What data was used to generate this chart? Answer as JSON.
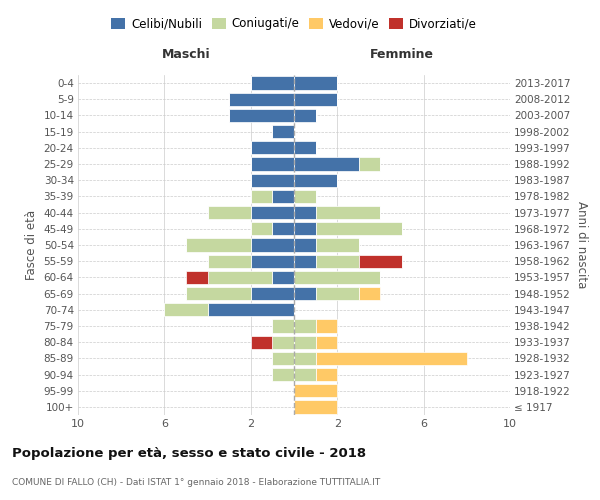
{
  "age_groups": [
    "100+",
    "95-99",
    "90-94",
    "85-89",
    "80-84",
    "75-79",
    "70-74",
    "65-69",
    "60-64",
    "55-59",
    "50-54",
    "45-49",
    "40-44",
    "35-39",
    "30-34",
    "25-29",
    "20-24",
    "15-19",
    "10-14",
    "5-9",
    "0-4"
  ],
  "birth_years": [
    "≤ 1917",
    "1918-1922",
    "1923-1927",
    "1928-1932",
    "1933-1937",
    "1938-1942",
    "1943-1947",
    "1948-1952",
    "1953-1957",
    "1958-1962",
    "1963-1967",
    "1968-1972",
    "1973-1977",
    "1978-1982",
    "1983-1987",
    "1988-1992",
    "1993-1997",
    "1998-2002",
    "2003-2007",
    "2008-2012",
    "2013-2017"
  ],
  "males": {
    "celibi": [
      0,
      0,
      0,
      0,
      0,
      0,
      4,
      2,
      1,
      2,
      2,
      1,
      2,
      1,
      2,
      2,
      2,
      1,
      3,
      3,
      2
    ],
    "coniugati": [
      0,
      0,
      1,
      1,
      1,
      1,
      2,
      3,
      3,
      2,
      3,
      1,
      2,
      1,
      0,
      0,
      0,
      0,
      0,
      0,
      0
    ],
    "vedovi": [
      0,
      0,
      0,
      0,
      0,
      0,
      0,
      0,
      0,
      0,
      0,
      0,
      0,
      0,
      0,
      0,
      0,
      0,
      0,
      0,
      0
    ],
    "divorziati": [
      0,
      0,
      0,
      0,
      1,
      0,
      0,
      0,
      1,
      0,
      0,
      0,
      0,
      0,
      0,
      0,
      0,
      0,
      0,
      0,
      0
    ]
  },
  "females": {
    "celibi": [
      0,
      0,
      0,
      0,
      0,
      0,
      0,
      1,
      0,
      1,
      1,
      1,
      1,
      0,
      2,
      3,
      1,
      0,
      1,
      2,
      2
    ],
    "coniugati": [
      0,
      0,
      1,
      1,
      1,
      1,
      0,
      2,
      4,
      2,
      2,
      4,
      3,
      1,
      0,
      1,
      0,
      0,
      0,
      0,
      0
    ],
    "vedovi": [
      2,
      2,
      1,
      7,
      1,
      1,
      0,
      1,
      0,
      0,
      0,
      0,
      0,
      0,
      0,
      0,
      0,
      0,
      0,
      0,
      0
    ],
    "divorziati": [
      0,
      0,
      0,
      0,
      0,
      0,
      0,
      0,
      0,
      2,
      0,
      0,
      0,
      0,
      0,
      0,
      0,
      0,
      0,
      0,
      0
    ]
  },
  "colors": {
    "celibi": "#4472a8",
    "coniugati": "#c5d8a0",
    "vedovi": "#ffc966",
    "divorziati": "#c0312b"
  },
  "legend_labels": [
    "Celibi/Nubili",
    "Coniugati/e",
    "Vedovi/e",
    "Divorziati/e"
  ],
  "title": "Popolazione per età, sesso e stato civile - 2018",
  "subtitle": "COMUNE DI FALLO (CH) - Dati ISTAT 1° gennaio 2018 - Elaborazione TUTTITALIA.IT",
  "ylabel_left": "Fasce di età",
  "ylabel_right": "Anni di nascita",
  "xlabel_left": "Maschi",
  "xlabel_right": "Femmine",
  "xlim": 10,
  "background_color": "#ffffff",
  "grid_color": "#cccccc"
}
